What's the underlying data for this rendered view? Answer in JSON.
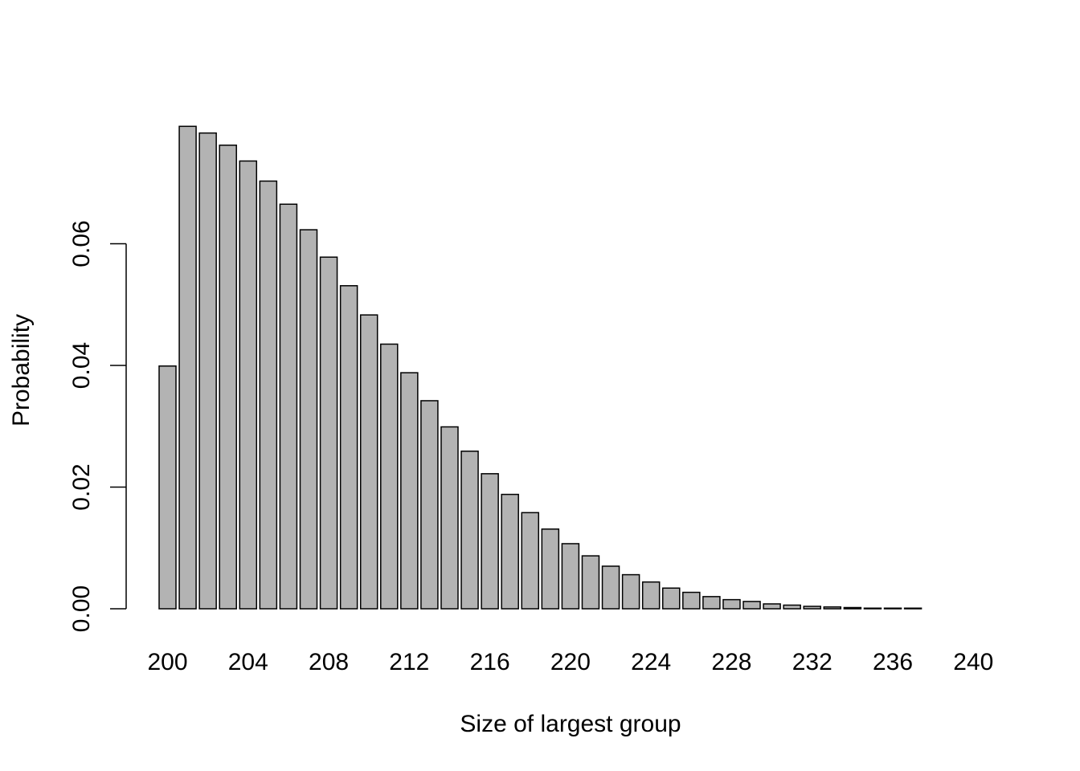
{
  "chart_data": {
    "type": "bar",
    "title": "",
    "xlabel": "Size of largest group",
    "ylabel": "Probability",
    "categories": [
      "200",
      "201",
      "202",
      "203",
      "204",
      "205",
      "206",
      "207",
      "208",
      "209",
      "210",
      "211",
      "212",
      "213",
      "214",
      "215",
      "216",
      "217",
      "218",
      "219",
      "220",
      "221",
      "222",
      "223",
      "224",
      "225",
      "226",
      "227",
      "228",
      "229",
      "230",
      "231",
      "232",
      "233",
      "234",
      "235",
      "236",
      "237",
      "238",
      "239",
      "240"
    ],
    "values": [
      0.0399,
      0.0793,
      0.0782,
      0.0762,
      0.0736,
      0.0703,
      0.0665,
      0.0623,
      0.0578,
      0.0531,
      0.0483,
      0.0435,
      0.0388,
      0.0342,
      0.0299,
      0.0259,
      0.0222,
      0.0188,
      0.0158,
      0.0131,
      0.0107,
      0.0087,
      0.007,
      0.0056,
      0.0044,
      0.0034,
      0.0027,
      0.002,
      0.0015,
      0.0012,
      0.0008,
      0.0006,
      0.0004,
      0.0003,
      0.0002,
      0.0001,
      0.0001,
      0.0001,
      0.0,
      0.0,
      0.0
    ],
    "x_tick_labels": [
      "200",
      "204",
      "208",
      "212",
      "216",
      "220",
      "224",
      "228",
      "232",
      "236",
      "240"
    ],
    "y_ticks": [
      0.0,
      0.02,
      0.04,
      0.06
    ],
    "y_tick_labels": [
      "0.00",
      "0.02",
      "0.04",
      "0.06"
    ],
    "ylim": [
      0,
      0.08
    ],
    "grid": false,
    "colors": {
      "bar_fill": "#b3b3b3",
      "bar_stroke": "#000000",
      "axis": "#000000"
    }
  }
}
